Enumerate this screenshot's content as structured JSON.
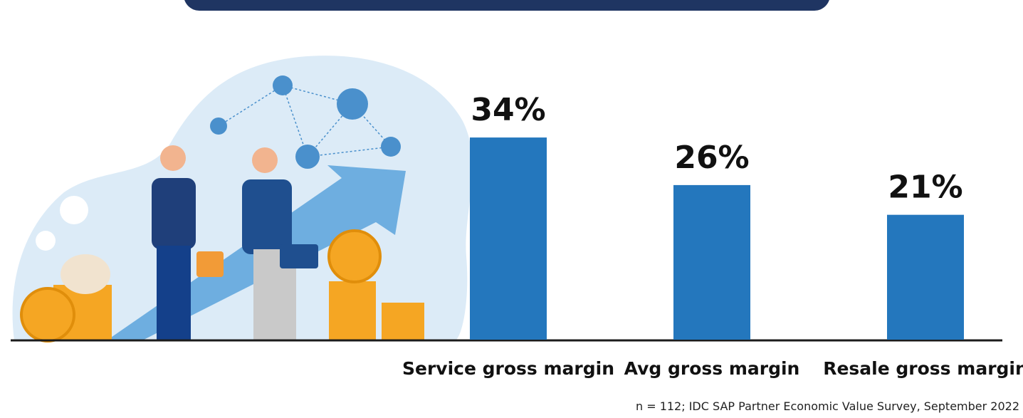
{
  "chart_data": {
    "type": "bar",
    "categories": [
      "Service gross margin",
      "Avg gross margin",
      "Resale gross margin"
    ],
    "values": [
      34,
      26,
      21
    ],
    "value_labels": [
      "34%",
      "26%",
      "21%"
    ],
    "color": "#2477bd",
    "note": "n = 112; IDC SAP Partner Economic Value Survey, September 2022"
  }
}
